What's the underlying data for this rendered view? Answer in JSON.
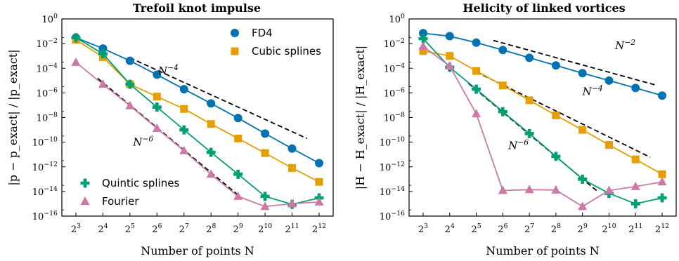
{
  "colors": {
    "fd4": "#0072b2",
    "cubic": "#e69f00",
    "quintic": "#009e73",
    "fourier": "#cc79a7"
  },
  "chart_data": [
    {
      "type": "line",
      "title": "Trefoil knot impulse",
      "xlabel": "Number of points N",
      "ylabel": "|p − p_exact| / |p_exact|",
      "xscale": "log2",
      "yscale": "log10",
      "x": [
        8,
        16,
        32,
        64,
        128,
        256,
        512,
        1024,
        2048,
        4096
      ],
      "xtick_labels": [
        "2^3",
        "2^4",
        "2^5",
        "2^6",
        "2^7",
        "2^8",
        "2^9",
        "2^10",
        "2^11",
        "2^12"
      ],
      "ylim": [
        1e-16,
        1
      ],
      "ytick_labels": [
        "10^-16",
        "10^-14",
        "10^-12",
        "10^-10",
        "10^-8",
        "10^-6",
        "10^-4",
        "10^-2",
        "10^0"
      ],
      "series": [
        {
          "name": "FD4",
          "key": "fd4",
          "marker": "circle",
          "values": [
            0.03,
            0.004,
            0.0004,
            3e-05,
            2e-06,
            1.4e-07,
            9e-09,
            5e-10,
            3e-11,
            2e-12
          ]
        },
        {
          "name": "Cubic splines",
          "key": "cubic",
          "marker": "square",
          "values": [
            0.02,
            0.0008,
            5e-06,
            5e-07,
            5e-08,
            3e-09,
            2e-10,
            1.3e-11,
            8e-13,
            6e-14
          ]
        },
        {
          "name": "Quintic splines",
          "key": "quintic",
          "marker": "plus",
          "values": [
            0.03,
            0.0015,
            5e-06,
            7e-08,
            1e-09,
            1.5e-11,
            2.5e-13,
            4e-15,
            9e-16,
            3e-15
          ]
        },
        {
          "name": "Fourier",
          "key": "fourier",
          "marker": "triangle",
          "values": [
            0.0003,
            5e-06,
            9e-08,
            1.3e-09,
            2e-11,
            2.5e-13,
            4e-15,
            6e-16,
            1e-15,
            1.4e-15
          ]
        }
      ],
      "legend": [
        {
          "position": "upper-right",
          "items": [
            "FD4",
            "Cubic splines"
          ]
        },
        {
          "position": "lower-left",
          "items": [
            "Quintic splines",
            "Fourier"
          ]
        }
      ],
      "reference_lines": [
        {
          "label": "N^-4",
          "order": -4,
          "x": [
            32,
            3000
          ],
          "y": [
            0.0007,
            2e-10
          ]
        },
        {
          "label": "N^-6",
          "order": -6,
          "x": [
            14,
            500
          ],
          "y": [
            1.5e-05,
            6e-15
          ]
        }
      ]
    },
    {
      "type": "line",
      "title": "Helicity of linked vortices",
      "xlabel": "Number of points N",
      "ylabel": "|H − H_exact| / |H_exact|",
      "xscale": "log2",
      "yscale": "log10",
      "x": [
        8,
        16,
        32,
        64,
        128,
        256,
        512,
        1024,
        2048,
        4096
      ],
      "xtick_labels": [
        "2^3",
        "2^4",
        "2^5",
        "2^6",
        "2^7",
        "2^8",
        "2^9",
        "2^10",
        "2^11",
        "2^12"
      ],
      "ylim": [
        1e-16,
        1
      ],
      "ytick_labels": [
        "10^-16",
        "10^-14",
        "10^-12",
        "10^-10",
        "10^-8",
        "10^-6",
        "10^-4",
        "10^-2",
        "10^0"
      ],
      "series": [
        {
          "name": "FD4",
          "key": "fd4",
          "marker": "circle",
          "values": [
            0.07,
            0.04,
            0.012,
            0.003,
            0.0007,
            0.00017,
            4e-05,
            1e-05,
            2.5e-06,
            6e-07
          ]
        },
        {
          "name": "Cubic splines",
          "key": "cubic",
          "marker": "square",
          "values": [
            0.0025,
            0.001,
            6e-05,
            4e-06,
            2.5e-07,
            1.5e-08,
            1e-09,
            6e-11,
            4e-12,
            2.5e-13
          ]
        },
        {
          "name": "Quintic splines",
          "key": "quintic",
          "marker": "plus",
          "values": [
            0.025,
            0.00012,
            2e-06,
            3e-08,
            5e-10,
            7e-12,
            1e-13,
            7e-15,
            1e-15,
            3e-15
          ]
        },
        {
          "name": "Fourier",
          "key": "fourier",
          "marker": "triangle",
          "values": [
            0.006,
            0.00015,
            2e-08,
            1.2e-14,
            1.4e-14,
            1.3e-14,
            6e-16,
            1.2e-14,
            2.5e-14,
            6e-14
          ]
        }
      ],
      "reference_lines": [
        {
          "label": "N^-2",
          "order": -2,
          "x": [
            50,
            3600
          ],
          "y": [
            0.018,
            4e-06
          ]
        },
        {
          "label": "N^-4",
          "order": -4,
          "x": [
            32,
            3000
          ],
          "y": [
            5e-05,
            6e-12
          ]
        },
        {
          "label": "N^-6",
          "order": -6,
          "x": [
            26,
            760
          ],
          "y": [
            6e-06,
            1e-14
          ]
        }
      ]
    }
  ]
}
